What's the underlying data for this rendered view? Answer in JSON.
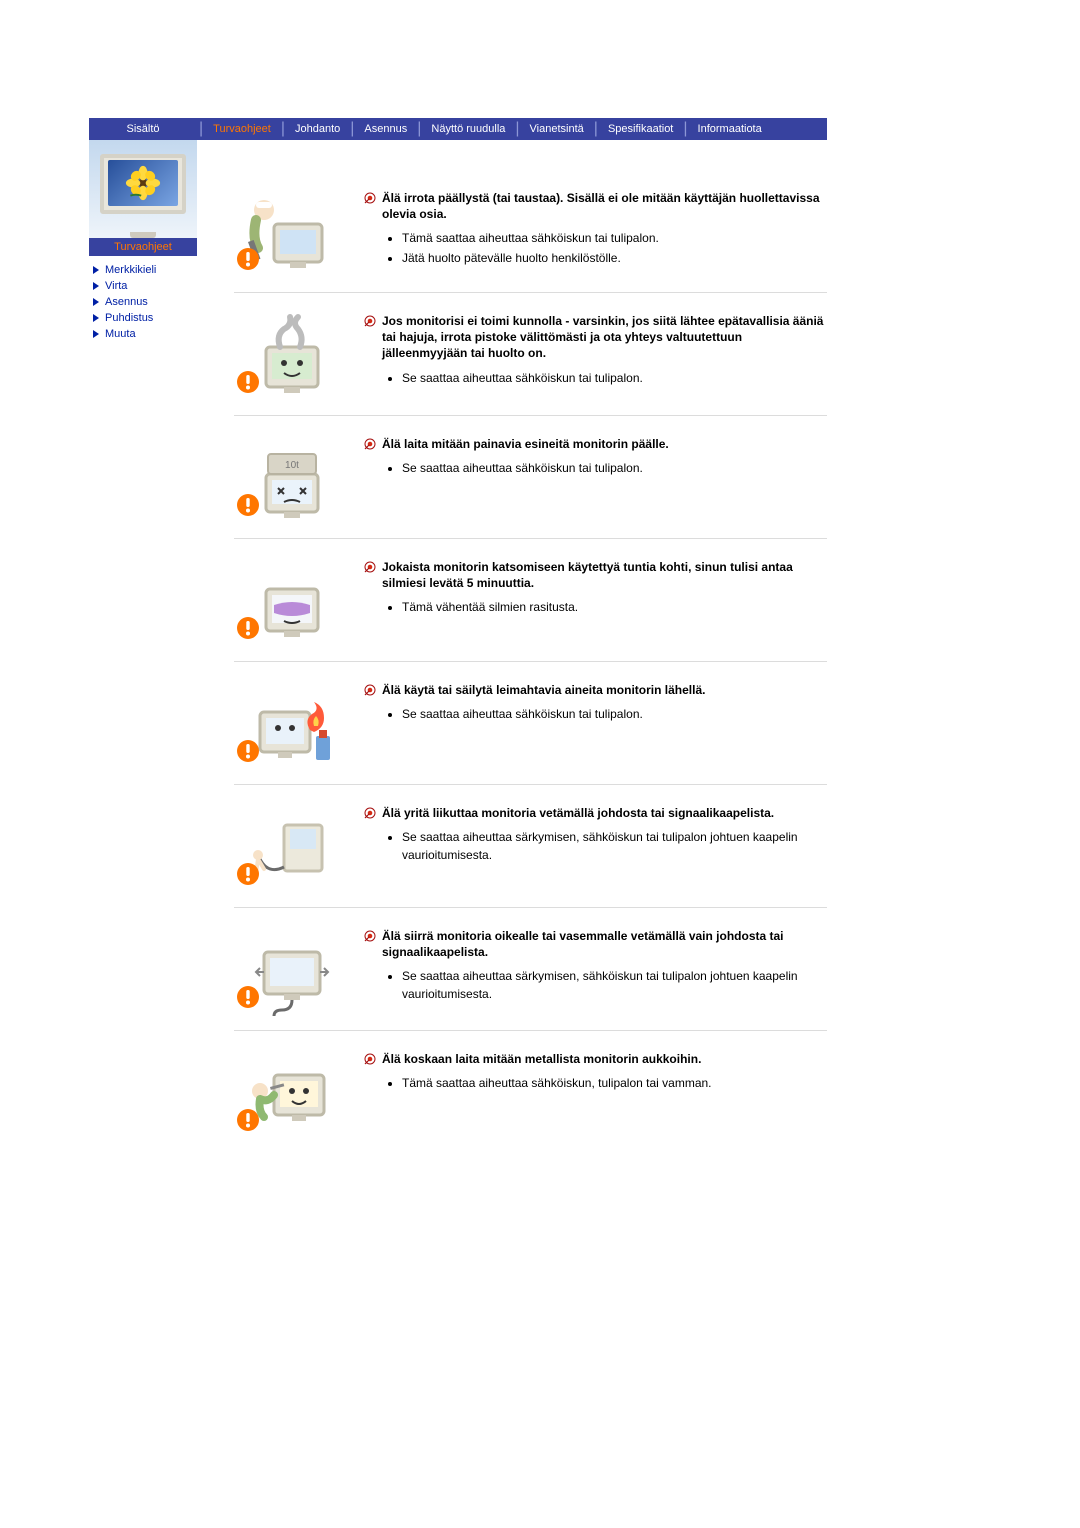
{
  "topnav": {
    "items": [
      "Sisältö",
      "Turvaohjeet",
      "Johdanto",
      "Asennus",
      "Näyttö ruudulla",
      "Vianetsintä",
      "Spesifikaatiot",
      "Informaatiota"
    ],
    "active_index": 1,
    "text_color": "#ffffff",
    "active_color": "#ff7600",
    "bg_color": "#37429f"
  },
  "sidebar": {
    "header": "Turvaohjeet",
    "header_color": "#ff7600",
    "links": [
      {
        "label": "Merkkikieli"
      },
      {
        "label": "Virta"
      },
      {
        "label": "Asennus"
      },
      {
        "label": "Puhdistus"
      },
      {
        "label": "Muuta"
      }
    ],
    "link_color": "#0020a5"
  },
  "warnings": [
    {
      "title": "Älä irrota päällystä (tai taustaa). Sisällä ei ole mitään käyttäjän huollettavissa olevia osia.",
      "points": [
        "Tämä saattaa aiheuttaa sähköiskun tai tulipalon.",
        "Jätä huolto pätevälle huolto henkilöstölle."
      ]
    },
    {
      "title": "Jos monitorisi ei toimi kunnolla - varsinkin, jos siitä lähtee epätavallisia ääniä tai hajuja, irrota pistoke välittömästi ja ota yhteys valtuutettuun jälleenmyyjään tai huolto on.",
      "points": [
        "Se saattaa aiheuttaa sähköiskun tai tulipalon."
      ]
    },
    {
      "title": "Älä laita mitään painavia esineitä monitorin päälle.",
      "points": [
        "Se saattaa aiheuttaa sähköiskun tai tulipalon."
      ]
    },
    {
      "title": "Jokaista monitorin katsomiseen käytettyä tuntia kohti, sinun tulisi antaa silmiesi levätä 5 minuuttia.",
      "points": [
        "Tämä vähentää silmien rasitusta."
      ]
    },
    {
      "title": "Älä käytä tai säilytä leimahtavia aineita monitorin lähellä.",
      "points": [
        "Se saattaa aiheuttaa sähköiskun tai tulipalon."
      ]
    },
    {
      "title": "Älä yritä liikuttaa monitoria vetämällä johdosta tai signaalikaapelista.",
      "points": [
        "Se saattaa aiheuttaa särkymisen, sähköiskun tai tulipalon johtuen kaapelin vaurioitumisesta."
      ]
    },
    {
      "title": "Älä siirrä monitoria oikealle tai vasemmalle vetämällä vain johdosta tai signaalikaapelista.",
      "points": [
        "Se saattaa aiheuttaa särkymisen, sähköiskun tai tulipalon johtuen kaapelin vaurioitumisesta."
      ]
    },
    {
      "title": "Älä koskaan laita mitään metallista monitorin aukkoihin.",
      "points": [
        "Tämä saattaa aiheuttaa sähköiskun, tulipalon tai vamman."
      ]
    }
  ],
  "style": {
    "bullet_red": "#d42a13",
    "warn_orange": "#ff7600",
    "line_color": "#dcdcdc"
  }
}
